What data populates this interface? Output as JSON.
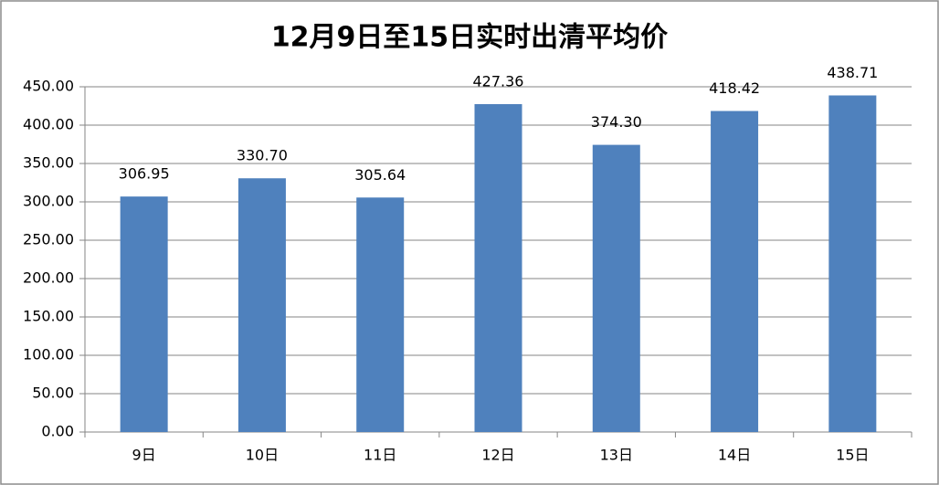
{
  "chart_data": {
    "type": "bar",
    "title": "12月9日至15日实时出清平均价",
    "categories": [
      "9日",
      "10日",
      "11日",
      "12日",
      "13日",
      "14日",
      "15日"
    ],
    "values": [
      306.95,
      330.7,
      305.64,
      427.36,
      374.3,
      418.42,
      438.71
    ],
    "value_labels": [
      "306.95",
      "330.70",
      "305.64",
      "427.36",
      "374.30",
      "418.42",
      "438.71"
    ],
    "color": "#4f81bd",
    "ylim": [
      0,
      450
    ],
    "yticks": [
      {
        "value": 0,
        "label": "0.00"
      },
      {
        "value": 50,
        "label": "50.00"
      },
      {
        "value": 100,
        "label": "100.00"
      },
      {
        "value": 150,
        "label": "150.00"
      },
      {
        "value": 200,
        "label": "200.00"
      },
      {
        "value": 250,
        "label": "250.00"
      },
      {
        "value": 300,
        "label": "300.00"
      },
      {
        "value": 350,
        "label": "350.00"
      },
      {
        "value": 400,
        "label": "400.00"
      },
      {
        "value": 450,
        "label": "450.00"
      }
    ],
    "grid": true
  }
}
